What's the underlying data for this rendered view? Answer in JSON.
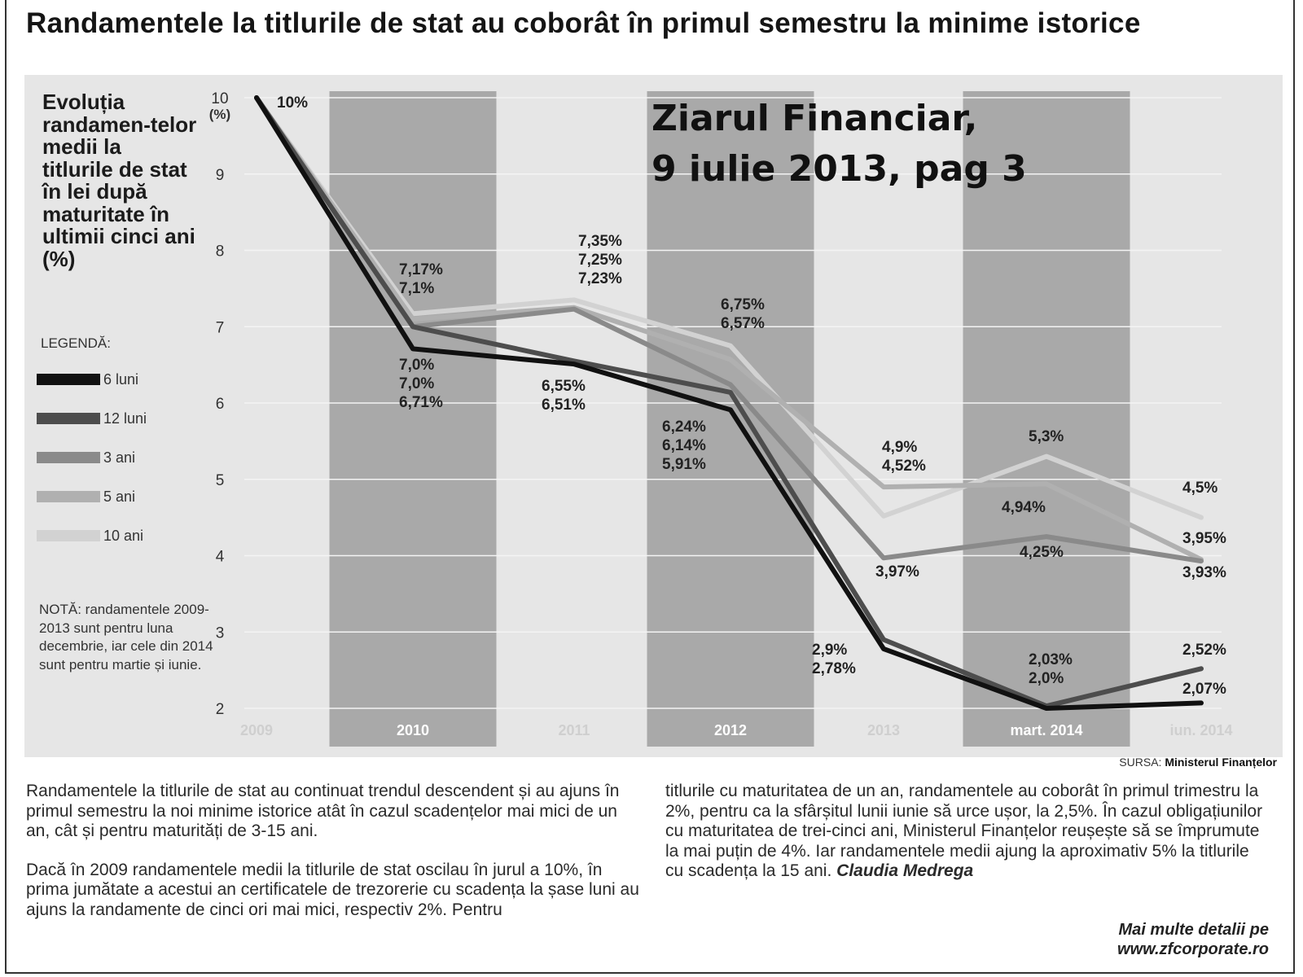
{
  "headline": "Randamentele la titlurile de stat au coborât în primul semestru la minime istorice",
  "side_title": "Evoluția randamen-telor medii la titlurile de stat în lei după maturitate în ultimii cinci ani (%)",
  "legend_title": "LEGENDĂ:",
  "note": "NOTĂ: randamentele 2009-2013 sunt pentru luna decembrie, iar cele din 2014 sunt pentru martie și iunie.",
  "source_label": "SURSA:",
  "source_name": "Ministerul Finanțelor",
  "stamp": "Ziarul Financiar,\n9 iulie 2013, pag 3",
  "chart_data": {
    "type": "line",
    "title": "Evoluția randamen-telor medii la titlurile de stat în lei după maturitate în ultimii cinci ani (%)",
    "categories": [
      "2009",
      "2010",
      "2011",
      "2012",
      "2013",
      "mart. 2014",
      "iun. 2014"
    ],
    "ylabel": "(%)",
    "ylim": [
      2,
      10
    ],
    "yticks": [
      10,
      9,
      8,
      7,
      6,
      5,
      4,
      3,
      2
    ],
    "grid": true,
    "shaded_columns": [
      1,
      3,
      5
    ],
    "series": [
      {
        "name": "6 luni",
        "color": "#111111",
        "values": [
          10,
          6.71,
          6.51,
          5.91,
          2.78,
          2.0,
          2.07
        ]
      },
      {
        "name": "12 luni",
        "color": "#4d4d4d",
        "values": [
          10,
          7.0,
          6.55,
          6.14,
          2.9,
          2.03,
          2.52
        ]
      },
      {
        "name": "3 ani",
        "color": "#8a8a8a",
        "values": [
          10,
          7.0,
          7.23,
          6.24,
          3.97,
          4.25,
          3.93
        ]
      },
      {
        "name": "5 ani",
        "color": "#b0b0b0",
        "values": [
          10,
          7.1,
          7.25,
          6.57,
          4.9,
          4.94,
          3.95
        ]
      },
      {
        "name": "10 ani",
        "color": "#d2d2d2",
        "values": [
          10,
          7.17,
          7.35,
          6.75,
          4.52,
          5.3,
          4.5
        ]
      }
    ],
    "data_labels": [
      {
        "lines": [
          "10%"
        ]
      },
      {
        "lines": [
          "7,17%",
          "7,1%"
        ]
      },
      {
        "lines": [
          "7,0%",
          "7,0%",
          "6,71%"
        ]
      },
      {
        "lines": [
          "7,35%",
          "7,25%",
          "7,23%"
        ]
      },
      {
        "lines": [
          "6,55%",
          "6,51%"
        ]
      },
      {
        "lines": [
          "6,75%",
          "6,57%"
        ]
      },
      {
        "lines": [
          "6,24%",
          "6,14%",
          "5,91%"
        ]
      },
      {
        "lines": [
          "4,9%",
          "4,52%"
        ]
      },
      {
        "lines": [
          "3,97%"
        ]
      },
      {
        "lines": [
          "2,9%",
          "2,78%"
        ]
      },
      {
        "lines": [
          "5,3%"
        ]
      },
      {
        "lines": [
          "4,94%"
        ]
      },
      {
        "lines": [
          "4,25%"
        ]
      },
      {
        "lines": [
          "2,03%",
          "2,0%"
        ]
      },
      {
        "lines": [
          "4,5%"
        ]
      },
      {
        "lines": [
          "3,95%"
        ]
      },
      {
        "lines": [
          "3,93%"
        ]
      },
      {
        "lines": [
          "2,52%"
        ]
      },
      {
        "lines": [
          "2,07%"
        ]
      }
    ]
  },
  "article": {
    "left_paragraphs": [
      "Randamentele la titlurile de stat au continuat trendul descendent și au ajuns în primul semestru la noi minime istorice atât în cazul scadențelor mai mici de un an, cât și pentru maturități de 3-15 ani.",
      "Dacă în 2009 randamentele medii la titlurile de stat oscilau în jurul a 10%, în prima jumătate a acestui an certificatele de trezorerie cu scadența la șase luni au ajuns la randamente de cinci ori mai mici, respectiv 2%. Pentru"
    ],
    "right_paragraph": "titlurile cu maturitatea de un an, randamentele au coborât în primul trimestru la 2%, pentru ca la sfârșitul lunii iunie să urce ușor, la 2,5%. În cazul obligațiunilor cu maturitatea de trei-cinci ani, Ministerul Finanțelor reușește să se împrumute la mai puțin de 4%. Iar randamentele medii ajung la aproximativ 5% la titlurile cu scadența la 15 ani.",
    "signature": "Claudia Medrega",
    "more_info_line1": "Mai multe detalii pe",
    "more_info_line2": "www.zfcorporate.ro"
  }
}
